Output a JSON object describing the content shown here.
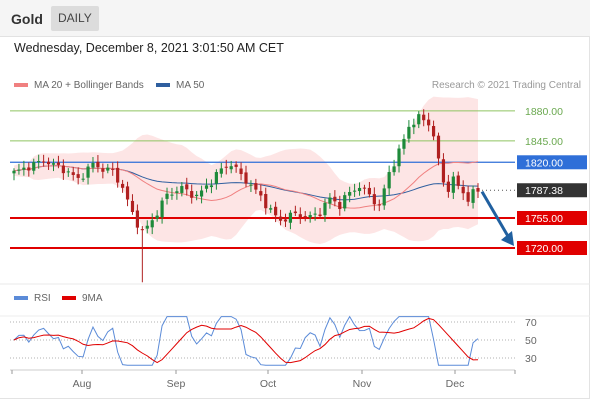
{
  "header": {
    "asset": "Gold",
    "timeframe": "DAILY"
  },
  "datetime": "Wednesday, December 8, 2021 3:01:50 AM CET",
  "legend": {
    "ma20_label": "MA 20 + Bollinger Bands",
    "ma50_label": "MA 50",
    "credit": "Research © 2021 Trading Central"
  },
  "rsi_legend": {
    "rsi_label": "RSI",
    "ma_label": "9MA"
  },
  "colors": {
    "ma20": "#f08080",
    "ma50": "#2f5f9f",
    "band": "#fde0e0",
    "support": "#e00000",
    "resistance": "#8fc461",
    "pivot": "#2f6fd8",
    "price_tag": "#333333",
    "rsi": "#5b8bd8",
    "rsi_ma": "#e00000",
    "up_candle": "#1e8a3a",
    "down_candle": "#b02020",
    "arrow": "#2060a0"
  },
  "chart_data": [
    {
      "type": "candlestick",
      "x_ticks": [
        "Aug",
        "Sep",
        "Oct",
        "Nov",
        "Dec"
      ],
      "ylim": [
        1660,
        1910
      ],
      "levels": [
        {
          "label": "1880.00",
          "value": 1880,
          "kind": "resistance"
        },
        {
          "label": "1845.00",
          "value": 1845,
          "kind": "resistance"
        },
        {
          "label": "1820.00",
          "value": 1820,
          "kind": "pivot"
        },
        {
          "label": "1787.38",
          "value": 1787.38,
          "kind": "last"
        },
        {
          "label": "1755.00",
          "value": 1755,
          "kind": "support"
        },
        {
          "label": "1720.00",
          "value": 1720,
          "kind": "support"
        }
      ],
      "forecast_target": 1720
    },
    {
      "type": "line",
      "x_ticks": [
        "Aug",
        "Sep",
        "Oct",
        "Nov",
        "Dec"
      ],
      "y_ticks": [
        "70",
        "50",
        "30"
      ],
      "ylim": [
        10,
        90
      ],
      "series": [
        {
          "name": "RSI"
        },
        {
          "name": "9MA"
        }
      ]
    }
  ]
}
